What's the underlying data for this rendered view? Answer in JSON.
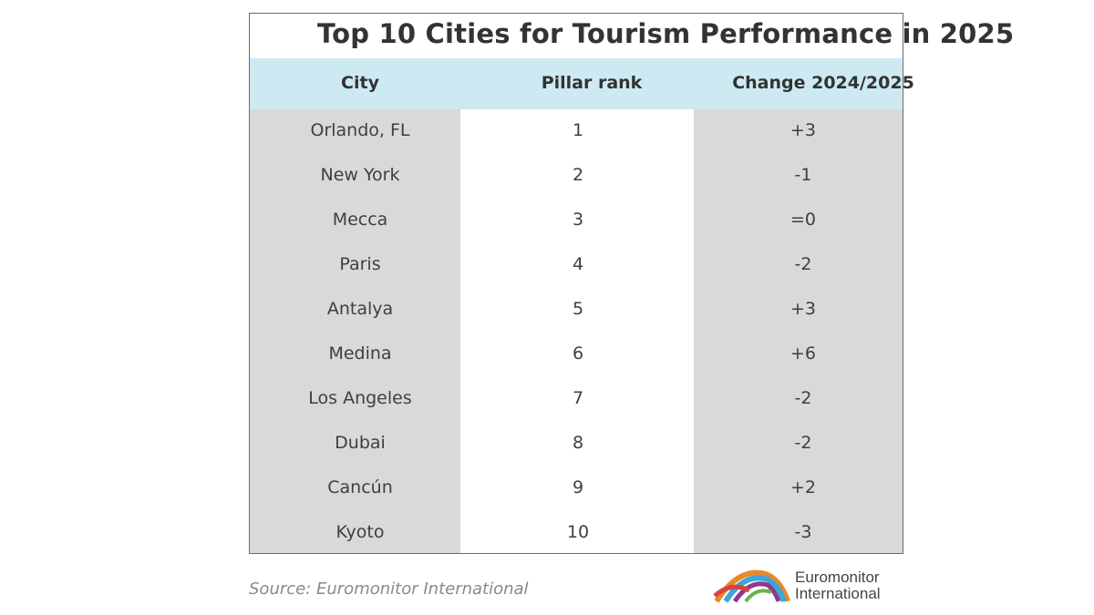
{
  "chart_data": {
    "type": "table",
    "title": "Top 10 Cities for Tourism Performance in 2025",
    "columns": [
      "City",
      "Pillar rank",
      "Change 2024/2025"
    ],
    "rows": [
      {
        "city": "Orlando, FL",
        "rank": "1",
        "change": "+3"
      },
      {
        "city": "New York",
        "rank": "2",
        "change": "-1"
      },
      {
        "city": "Mecca",
        "rank": "3",
        "change": "=0"
      },
      {
        "city": "Paris",
        "rank": "4",
        "change": "-2"
      },
      {
        "city": "Antalya",
        "rank": "5",
        "change": "+3"
      },
      {
        "city": "Medina",
        "rank": "6",
        "change": "+6"
      },
      {
        "city": "Los Angeles",
        "rank": "7",
        "change": "-2"
      },
      {
        "city": "Dubai",
        "rank": "8",
        "change": "-2"
      },
      {
        "city": "Cancún",
        "rank": "9",
        "change": "+2"
      },
      {
        "city": "Kyoto",
        "rank": "10",
        "change": "-3"
      }
    ]
  },
  "footer": {
    "source": "Source: Euromonitor International",
    "logo_line1": "Euromonitor",
    "logo_line2": "International"
  },
  "colors": {
    "header_band": "#cdeaf3",
    "shaded_column": "#d9d9d9"
  }
}
